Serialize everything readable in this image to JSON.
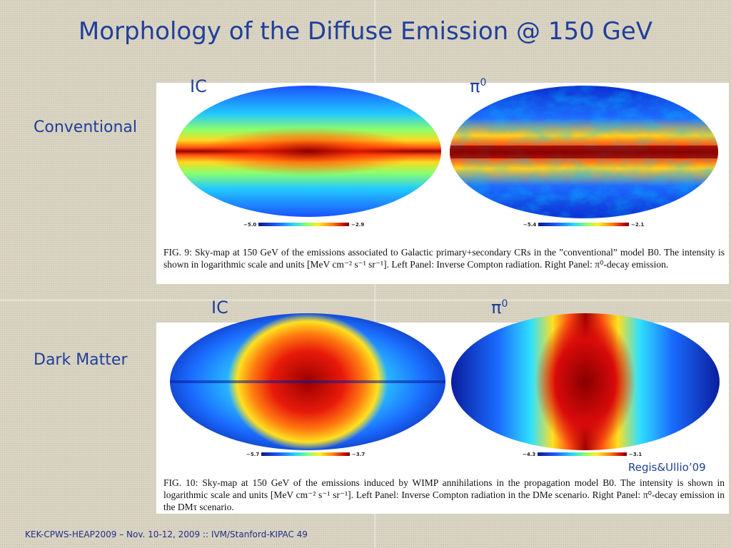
{
  "title": "Morphology of the Diffuse Emission @ 150 GeV",
  "rows": {
    "conventional": "Conventional",
    "dark_matter": "Dark Matter"
  },
  "maps": {
    "ic_label": "IC",
    "pi0_label": "π",
    "pi0_sup": "0"
  },
  "colorbars": {
    "fig9_ic": [
      "−5.0",
      "−2.9"
    ],
    "fig9_pi0": [
      "−5.4",
      "−2.1"
    ],
    "fig10_ic": [
      "−5.7",
      "−3.7"
    ],
    "fig10_pi0": [
      "−4.3",
      "−3.1"
    ]
  },
  "captions": {
    "fig9": "FIG. 9: Sky-map at 150 GeV of the emissions associated to Galactic primary+secondary CRs in the ”conventional” model B0. The intensity is shown in logarithmic scale and units [MeV cm⁻² s⁻¹ sr⁻¹]. Left Panel: Inverse Compton radiation. Right Panel: π⁰-decay emission.",
    "fig10": "FIG. 10: Sky-map at 150 GeV of the emissions induced by WIMP annihilations in the propagation model B0. The intensity is shown in logarithmic scale and units [MeV cm⁻² s⁻¹ sr⁻¹]. Left Panel: Inverse Compton radiation in the DMe scenario. Right Panel: π⁰-decay emission in the DMτ scenario."
  },
  "credit": "Regis&Ullio’09",
  "footer": "KEK-CPWS-HEAP2009 – Nov. 10-12, 2009 :: IVM/Stanford-KIPAC  49",
  "colors": {
    "title_blue": "#1f3f9a",
    "jet_dark": "#7a0000",
    "jet_low": "#0a1a8a"
  }
}
